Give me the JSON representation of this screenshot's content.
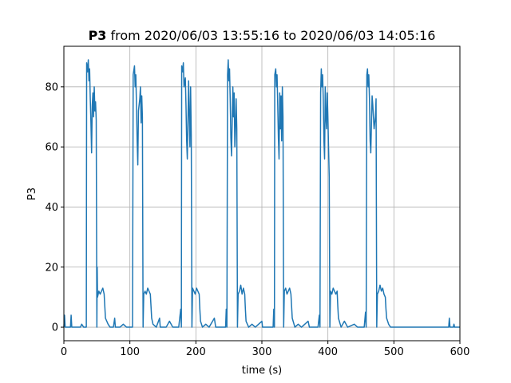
{
  "chart_data": {
    "type": "line",
    "title_bold": "P3",
    "title_rest": " from 2020/06/03 13:55:16 to 2020/06/03 14:05:16",
    "xlabel": "time (s)",
    "ylabel": "P3",
    "xlim": [
      0,
      600
    ],
    "ylim": [
      -4.5,
      93.5
    ],
    "xticks": [
      0,
      100,
      200,
      300,
      400,
      500,
      600
    ],
    "yticks": [
      0,
      20,
      40,
      60,
      80
    ],
    "grid": true,
    "series_color": "#1f77b4",
    "series": [
      {
        "values": [
          [
            0,
            0
          ],
          [
            1,
            4
          ],
          [
            2,
            0
          ],
          [
            10,
            0
          ],
          [
            11,
            4
          ],
          [
            12,
            0
          ],
          [
            25,
            0
          ],
          [
            27,
            1
          ],
          [
            30,
            0
          ],
          [
            34,
            0
          ],
          [
            34.5,
            88
          ],
          [
            36,
            85
          ],
          [
            37,
            89
          ],
          [
            38,
            82
          ],
          [
            39,
            86
          ],
          [
            40,
            76
          ],
          [
            41,
            68
          ],
          [
            42,
            58
          ],
          [
            43,
            74
          ],
          [
            44,
            78
          ],
          [
            45,
            70
          ],
          [
            46,
            80
          ],
          [
            47,
            72
          ],
          [
            48,
            75
          ],
          [
            49,
            69
          ],
          [
            50,
            0
          ],
          [
            50.5,
            20
          ],
          [
            51,
            10
          ],
          [
            53,
            12
          ],
          [
            55,
            11
          ],
          [
            57,
            12
          ],
          [
            59,
            13
          ],
          [
            61,
            11
          ],
          [
            62,
            7
          ],
          [
            63,
            3
          ],
          [
            65,
            2
          ],
          [
            67,
            1
          ],
          [
            70,
            0
          ],
          [
            75,
            0
          ],
          [
            77,
            3
          ],
          [
            78,
            0
          ],
          [
            85,
            0
          ],
          [
            90,
            1
          ],
          [
            95,
            0
          ],
          [
            104,
            0
          ],
          [
            105,
            84
          ],
          [
            107,
            87
          ],
          [
            108,
            80
          ],
          [
            109,
            84
          ],
          [
            110,
            74
          ],
          [
            111,
            62
          ],
          [
            112,
            54
          ],
          [
            113,
            72
          ],
          [
            115,
            76
          ],
          [
            116,
            80
          ],
          [
            117,
            68
          ],
          [
            118,
            77
          ],
          [
            119,
            70
          ],
          [
            120,
            0
          ],
          [
            121,
            11
          ],
          [
            123,
            12
          ],
          [
            125,
            11
          ],
          [
            127,
            13
          ],
          [
            129,
            12
          ],
          [
            131,
            11
          ],
          [
            132,
            7
          ],
          [
            133,
            3
          ],
          [
            135,
            1
          ],
          [
            140,
            0
          ],
          [
            145,
            3
          ],
          [
            146,
            0
          ],
          [
            155,
            0
          ],
          [
            160,
            2
          ],
          [
            165,
            0
          ],
          [
            174,
            0
          ],
          [
            177,
            6
          ],
          [
            178,
            0
          ],
          [
            178.5,
            87
          ],
          [
            180,
            85
          ],
          [
            181,
            88
          ],
          [
            182,
            80
          ],
          [
            184,
            83
          ],
          [
            185,
            74
          ],
          [
            186,
            62
          ],
          [
            187,
            56
          ],
          [
            189,
            82
          ],
          [
            190,
            70
          ],
          [
            191,
            60
          ],
          [
            192,
            80
          ],
          [
            193,
            64
          ],
          [
            194,
            0
          ],
          [
            195,
            13
          ],
          [
            197,
            12
          ],
          [
            199,
            11
          ],
          [
            201,
            13
          ],
          [
            203,
            12
          ],
          [
            205,
            11
          ],
          [
            206,
            6
          ],
          [
            207,
            2
          ],
          [
            210,
            0
          ],
          [
            215,
            1
          ],
          [
            220,
            0
          ],
          [
            228,
            3
          ],
          [
            230,
            0
          ],
          [
            245,
            0
          ],
          [
            246,
            6
          ],
          [
            247,
            0
          ],
          [
            248,
            84
          ],
          [
            249,
            89
          ],
          [
            250,
            82
          ],
          [
            251,
            86
          ],
          [
            252,
            76
          ],
          [
            253,
            63
          ],
          [
            254,
            57
          ],
          [
            256,
            80
          ],
          [
            257,
            70
          ],
          [
            258,
            78
          ],
          [
            259,
            60
          ],
          [
            260,
            66
          ],
          [
            261,
            76
          ],
          [
            262,
            66
          ],
          [
            263,
            0
          ],
          [
            264,
            11
          ],
          [
            266,
            12
          ],
          [
            268,
            14
          ],
          [
            270,
            11
          ],
          [
            272,
            13
          ],
          [
            274,
            11
          ],
          [
            275,
            6
          ],
          [
            276,
            2
          ],
          [
            280,
            0
          ],
          [
            285,
            1
          ],
          [
            290,
            0
          ],
          [
            300,
            2
          ],
          [
            301,
            0
          ],
          [
            317,
            0
          ],
          [
            318,
            6
          ],
          [
            319,
            0
          ],
          [
            319.5,
            84
          ],
          [
            321,
            86
          ],
          [
            322,
            80
          ],
          [
            323,
            84
          ],
          [
            324,
            74
          ],
          [
            325,
            63
          ],
          [
            326,
            56
          ],
          [
            327,
            78
          ],
          [
            328,
            66
          ],
          [
            329,
            77
          ],
          [
            330,
            62
          ],
          [
            331,
            80
          ],
          [
            332,
            70
          ],
          [
            333,
            0
          ],
          [
            334,
            12
          ],
          [
            336,
            13
          ],
          [
            338,
            11
          ],
          [
            340,
            12
          ],
          [
            342,
            13
          ],
          [
            344,
            11
          ],
          [
            345,
            7
          ],
          [
            346,
            3
          ],
          [
            350,
            0
          ],
          [
            355,
            1
          ],
          [
            360,
            0
          ],
          [
            370,
            2
          ],
          [
            372,
            0
          ],
          [
            385,
            0
          ],
          [
            387,
            4
          ],
          [
            388,
            0
          ],
          [
            389,
            78
          ],
          [
            390,
            86
          ],
          [
            391,
            80
          ],
          [
            392,
            84
          ],
          [
            393,
            76
          ],
          [
            394,
            62
          ],
          [
            395,
            56
          ],
          [
            396,
            80
          ],
          [
            397,
            70
          ],
          [
            398,
            66
          ],
          [
            399,
            78
          ],
          [
            400,
            70
          ],
          [
            401,
            60
          ],
          [
            402,
            50
          ],
          [
            403,
            0
          ],
          [
            404,
            12
          ],
          [
            406,
            11
          ],
          [
            408,
            13
          ],
          [
            410,
            12
          ],
          [
            412,
            11
          ],
          [
            414,
            12
          ],
          [
            415,
            7
          ],
          [
            416,
            3
          ],
          [
            420,
            0
          ],
          [
            425,
            2
          ],
          [
            430,
            0
          ],
          [
            440,
            1
          ],
          [
            445,
            0
          ],
          [
            455,
            0
          ],
          [
            457,
            5
          ],
          [
            458,
            0
          ],
          [
            459,
            84
          ],
          [
            460,
            86
          ],
          [
            461,
            80
          ],
          [
            462,
            84
          ],
          [
            463,
            76
          ],
          [
            464,
            62
          ],
          [
            465,
            58
          ],
          [
            467,
            77
          ],
          [
            468,
            74
          ],
          [
            470,
            66
          ],
          [
            472,
            70
          ],
          [
            473,
            76
          ],
          [
            474,
            0
          ],
          [
            475,
            11
          ],
          [
            477,
            12
          ],
          [
            479,
            14
          ],
          [
            481,
            12
          ],
          [
            483,
            13
          ],
          [
            485,
            11
          ],
          [
            487,
            10
          ],
          [
            488,
            6
          ],
          [
            489,
            3
          ],
          [
            492,
            1
          ],
          [
            495,
            0
          ],
          [
            500,
            0
          ],
          [
            550,
            0
          ],
          [
            583,
            0
          ],
          [
            584,
            3
          ],
          [
            585,
            0
          ],
          [
            590,
            0
          ],
          [
            591,
            1
          ],
          [
            592,
            0
          ],
          [
            600,
            0
          ]
        ]
      }
    ]
  }
}
